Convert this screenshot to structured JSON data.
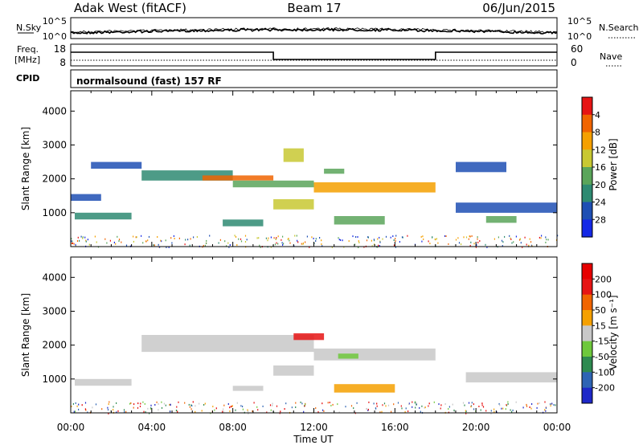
{
  "header": {
    "station": "Adak West (fitACF)",
    "beam": "Beam 17",
    "date": "06/Jun/2015"
  },
  "nsky_panel": {
    "left_label": "N.Sky",
    "right_label": "N.Search",
    "left_ticks": [
      "10^5",
      "10^0"
    ],
    "right_ticks": [
      "10^5",
      "10^0"
    ]
  },
  "freq_panel": {
    "left_label_line1": "Freq.",
    "left_label_line2": "[MHz]",
    "right_label": "Nave",
    "left_ticks": [
      "18",
      "8"
    ],
    "right_ticks": [
      "60",
      "0"
    ],
    "steps": [
      {
        "from": 0,
        "to": 10,
        "level": "high"
      },
      {
        "from": 10,
        "to": 18,
        "level": "low"
      },
      {
        "from": 18,
        "to": 24,
        "level": "high"
      }
    ]
  },
  "cpid_panel": {
    "label": "CPID",
    "mode": "normalsound (fast) 157 RF"
  },
  "chart_data": [
    {
      "type": "heatmap",
      "name": "power",
      "ylabel": "Slant Range [km]",
      "yticks": [
        1000,
        2000,
        3000,
        4000
      ],
      "ylim": [
        0,
        4600
      ],
      "xlim": [
        0,
        24
      ],
      "colorbar_label": "Power [dB]",
      "colorbar_ticks": [
        "4",
        "8",
        "12",
        "16",
        "20",
        "24",
        "28"
      ],
      "colorbar_colors": [
        "#1428e6",
        "#1e4fb4",
        "#2e8a72",
        "#5aa55a",
        "#c8c832",
        "#f5a000",
        "#f06400",
        "#e61414"
      ],
      "regions": [
        {
          "t": [
            0.2,
            3.0
          ],
          "r": [
            800,
            1000
          ],
          "color": "#2e8a72"
        },
        {
          "t": [
            0.0,
            1.5
          ],
          "r": [
            1350,
            1550
          ],
          "color": "#1e4fb4"
        },
        {
          "t": [
            1.0,
            3.5
          ],
          "r": [
            2300,
            2500
          ],
          "color": "#1e4fb4"
        },
        {
          "t": [
            3.5,
            8.0
          ],
          "r": [
            1950,
            2250
          ],
          "color": "#2e8a72"
        },
        {
          "t": [
            6.5,
            10.0
          ],
          "r": [
            1950,
            2100
          ],
          "color": "#f06400"
        },
        {
          "t": [
            8.0,
            12.0
          ],
          "r": [
            1750,
            1950
          ],
          "color": "#5aa55a"
        },
        {
          "t": [
            10.0,
            12.0
          ],
          "r": [
            1100,
            1400
          ],
          "color": "#c8c832"
        },
        {
          "t": [
            12.0,
            18.0
          ],
          "r": [
            1600,
            1900
          ],
          "color": "#f5a000"
        },
        {
          "t": [
            7.5,
            9.5
          ],
          "r": [
            600,
            800
          ],
          "color": "#2e8a72"
        },
        {
          "t": [
            13.0,
            15.5
          ],
          "r": [
            650,
            900
          ],
          "color": "#5aa55a"
        },
        {
          "t": [
            10.5,
            11.5
          ],
          "r": [
            2500,
            2900
          ],
          "color": "#c8c832"
        },
        {
          "t": [
            12.5,
            13.5
          ],
          "r": [
            2150,
            2300
          ],
          "color": "#5aa55a"
        },
        {
          "t": [
            19.0,
            24.0
          ],
          "r": [
            1000,
            1300
          ],
          "color": "#1e4fb4"
        },
        {
          "t": [
            20.5,
            22.0
          ],
          "r": [
            700,
            900
          ],
          "color": "#5aa55a"
        },
        {
          "t": [
            19.0,
            21.5
          ],
          "r": [
            2200,
            2500
          ],
          "color": "#1e4fb4"
        }
      ]
    },
    {
      "type": "heatmap",
      "name": "velocity",
      "ylabel": "Slant Range [km]",
      "yticks": [
        1000,
        2000,
        3000,
        4000
      ],
      "ylim": [
        0,
        4600
      ],
      "xlim": [
        0,
        24
      ],
      "xticks": [
        "00:00",
        "04:00",
        "08:00",
        "12:00",
        "16:00",
        "20:00",
        "00:00"
      ],
      "xlabel": "Time UT",
      "colorbar_label": "Velocity [m s⁻¹]",
      "colorbar_ticks": [
        "200",
        "100",
        "50",
        "15",
        "-15",
        "-50",
        "-100",
        "-200"
      ],
      "colorbar_colors": [
        "#1e28c8",
        "#2e64b4",
        "#2e8a50",
        "#6ec83c",
        "#c8c8c8",
        "#f5a000",
        "#f06400",
        "#e61414",
        "#e60000"
      ],
      "regions": [
        {
          "t": [
            0.2,
            3.0
          ],
          "r": [
            800,
            1000
          ],
          "color": "#c8c8c8"
        },
        {
          "t": [
            3.5,
            12.0
          ],
          "r": [
            1800,
            2300
          ],
          "color": "#c8c8c8"
        },
        {
          "t": [
            10.0,
            12.0
          ],
          "r": [
            1100,
            1400
          ],
          "color": "#c8c8c8"
        },
        {
          "t": [
            12.0,
            18.0
          ],
          "r": [
            1550,
            1900
          ],
          "color": "#c8c8c8"
        },
        {
          "t": [
            11.0,
            12.5
          ],
          "r": [
            2150,
            2350
          ],
          "color": "#e61414"
        },
        {
          "t": [
            13.2,
            14.2
          ],
          "r": [
            1600,
            1750
          ],
          "color": "#6ec83c"
        },
        {
          "t": [
            13.0,
            16.0
          ],
          "r": [
            600,
            850
          ],
          "color": "#f5a000"
        },
        {
          "t": [
            8.0,
            9.5
          ],
          "r": [
            650,
            800
          ],
          "color": "#c8c8c8"
        },
        {
          "t": [
            19.5,
            24.0
          ],
          "r": [
            900,
            1200
          ],
          "color": "#c8c8c8"
        }
      ]
    }
  ]
}
